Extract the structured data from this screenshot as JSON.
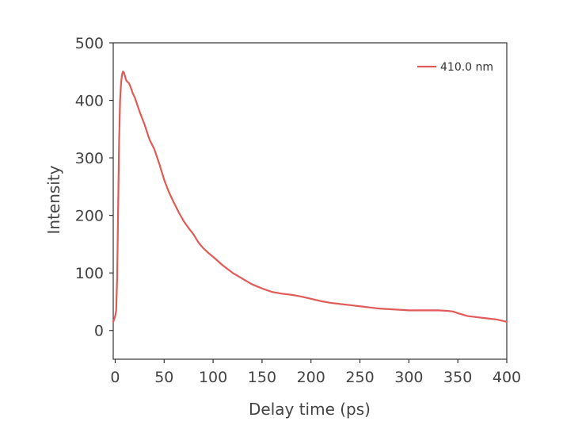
{
  "chart_data": {
    "type": "line",
    "xlabel": "Delay time (ps)",
    "ylabel": "Intensity",
    "xlim": [
      -2,
      400
    ],
    "ylim": [
      -50,
      500
    ],
    "xticks": [
      0,
      50,
      100,
      150,
      200,
      250,
      300,
      350,
      400
    ],
    "yticks": [
      0,
      100,
      200,
      300,
      400,
      500
    ],
    "grid": false,
    "legend_position": "top-right",
    "series": [
      {
        "name": "410.0 nm",
        "color": "#e05a57",
        "x": [
          -2,
          0,
          1,
          2,
          3,
          4,
          5,
          6,
          7,
          8,
          9,
          10,
          11,
          12,
          14,
          16,
          18,
          20,
          22,
          25,
          30,
          35,
          40,
          45,
          50,
          55,
          60,
          65,
          70,
          75,
          80,
          85,
          90,
          95,
          100,
          110,
          120,
          130,
          140,
          150,
          160,
          170,
          180,
          190,
          200,
          210,
          220,
          230,
          240,
          250,
          260,
          270,
          280,
          290,
          300,
          310,
          320,
          330,
          340,
          345,
          350,
          360,
          370,
          380,
          390,
          400
        ],
        "y": [
          15,
          25,
          35,
          90,
          210,
          330,
          400,
          430,
          445,
          450,
          448,
          442,
          436,
          433,
          430,
          422,
          412,
          405,
          395,
          380,
          358,
          332,
          315,
          290,
          262,
          240,
          222,
          205,
          190,
          178,
          167,
          153,
          143,
          135,
          128,
          113,
          100,
          90,
          80,
          73,
          67,
          64,
          62,
          59,
          55,
          51,
          48,
          46,
          44,
          42,
          40,
          38,
          37,
          36,
          35,
          35,
          35,
          35,
          34,
          33,
          30,
          25,
          23,
          21,
          19,
          15
        ]
      }
    ]
  }
}
